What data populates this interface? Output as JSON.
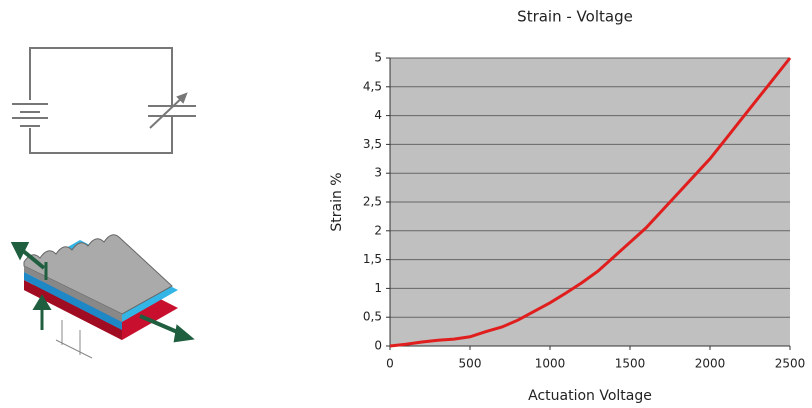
{
  "chart_data": {
    "type": "line",
    "title": "Strain - Voltage",
    "x_label": "Actuation Voltage",
    "y_label": "Strain %",
    "x": [
      0,
      100,
      200,
      300,
      400,
      500,
      600,
      700,
      800,
      900,
      1000,
      1100,
      1200,
      1300,
      1400,
      1500,
      1600,
      1700,
      1800,
      1900,
      2000,
      2100,
      2200,
      2300,
      2400,
      2500
    ],
    "values": [
      0,
      0.03,
      0.07,
      0.1,
      0.12,
      0.16,
      0.25,
      0.33,
      0.45,
      0.6,
      0.75,
      0.92,
      1.1,
      1.3,
      1.55,
      1.8,
      2.05,
      2.35,
      2.65,
      2.95,
      3.25,
      3.6,
      3.95,
      4.3,
      4.65,
      5.0
    ],
    "color": "#e01e1e",
    "xlim": [
      0,
      2500
    ],
    "xticks": [
      0,
      500,
      1000,
      1500,
      2000,
      2500
    ],
    "ylim": [
      0,
      5
    ],
    "yticks": [
      0,
      {
        "value": 0.5,
        "label": "0,5"
      },
      1,
      {
        "value": 1.5,
        "label": "1,5"
      },
      2,
      {
        "value": 2.5,
        "label": "2,5"
      },
      3,
      {
        "value": 3.5,
        "label": "3,5"
      },
      4,
      {
        "value": 4.5,
        "label": "4,5"
      },
      5
    ],
    "grid": true
  }
}
